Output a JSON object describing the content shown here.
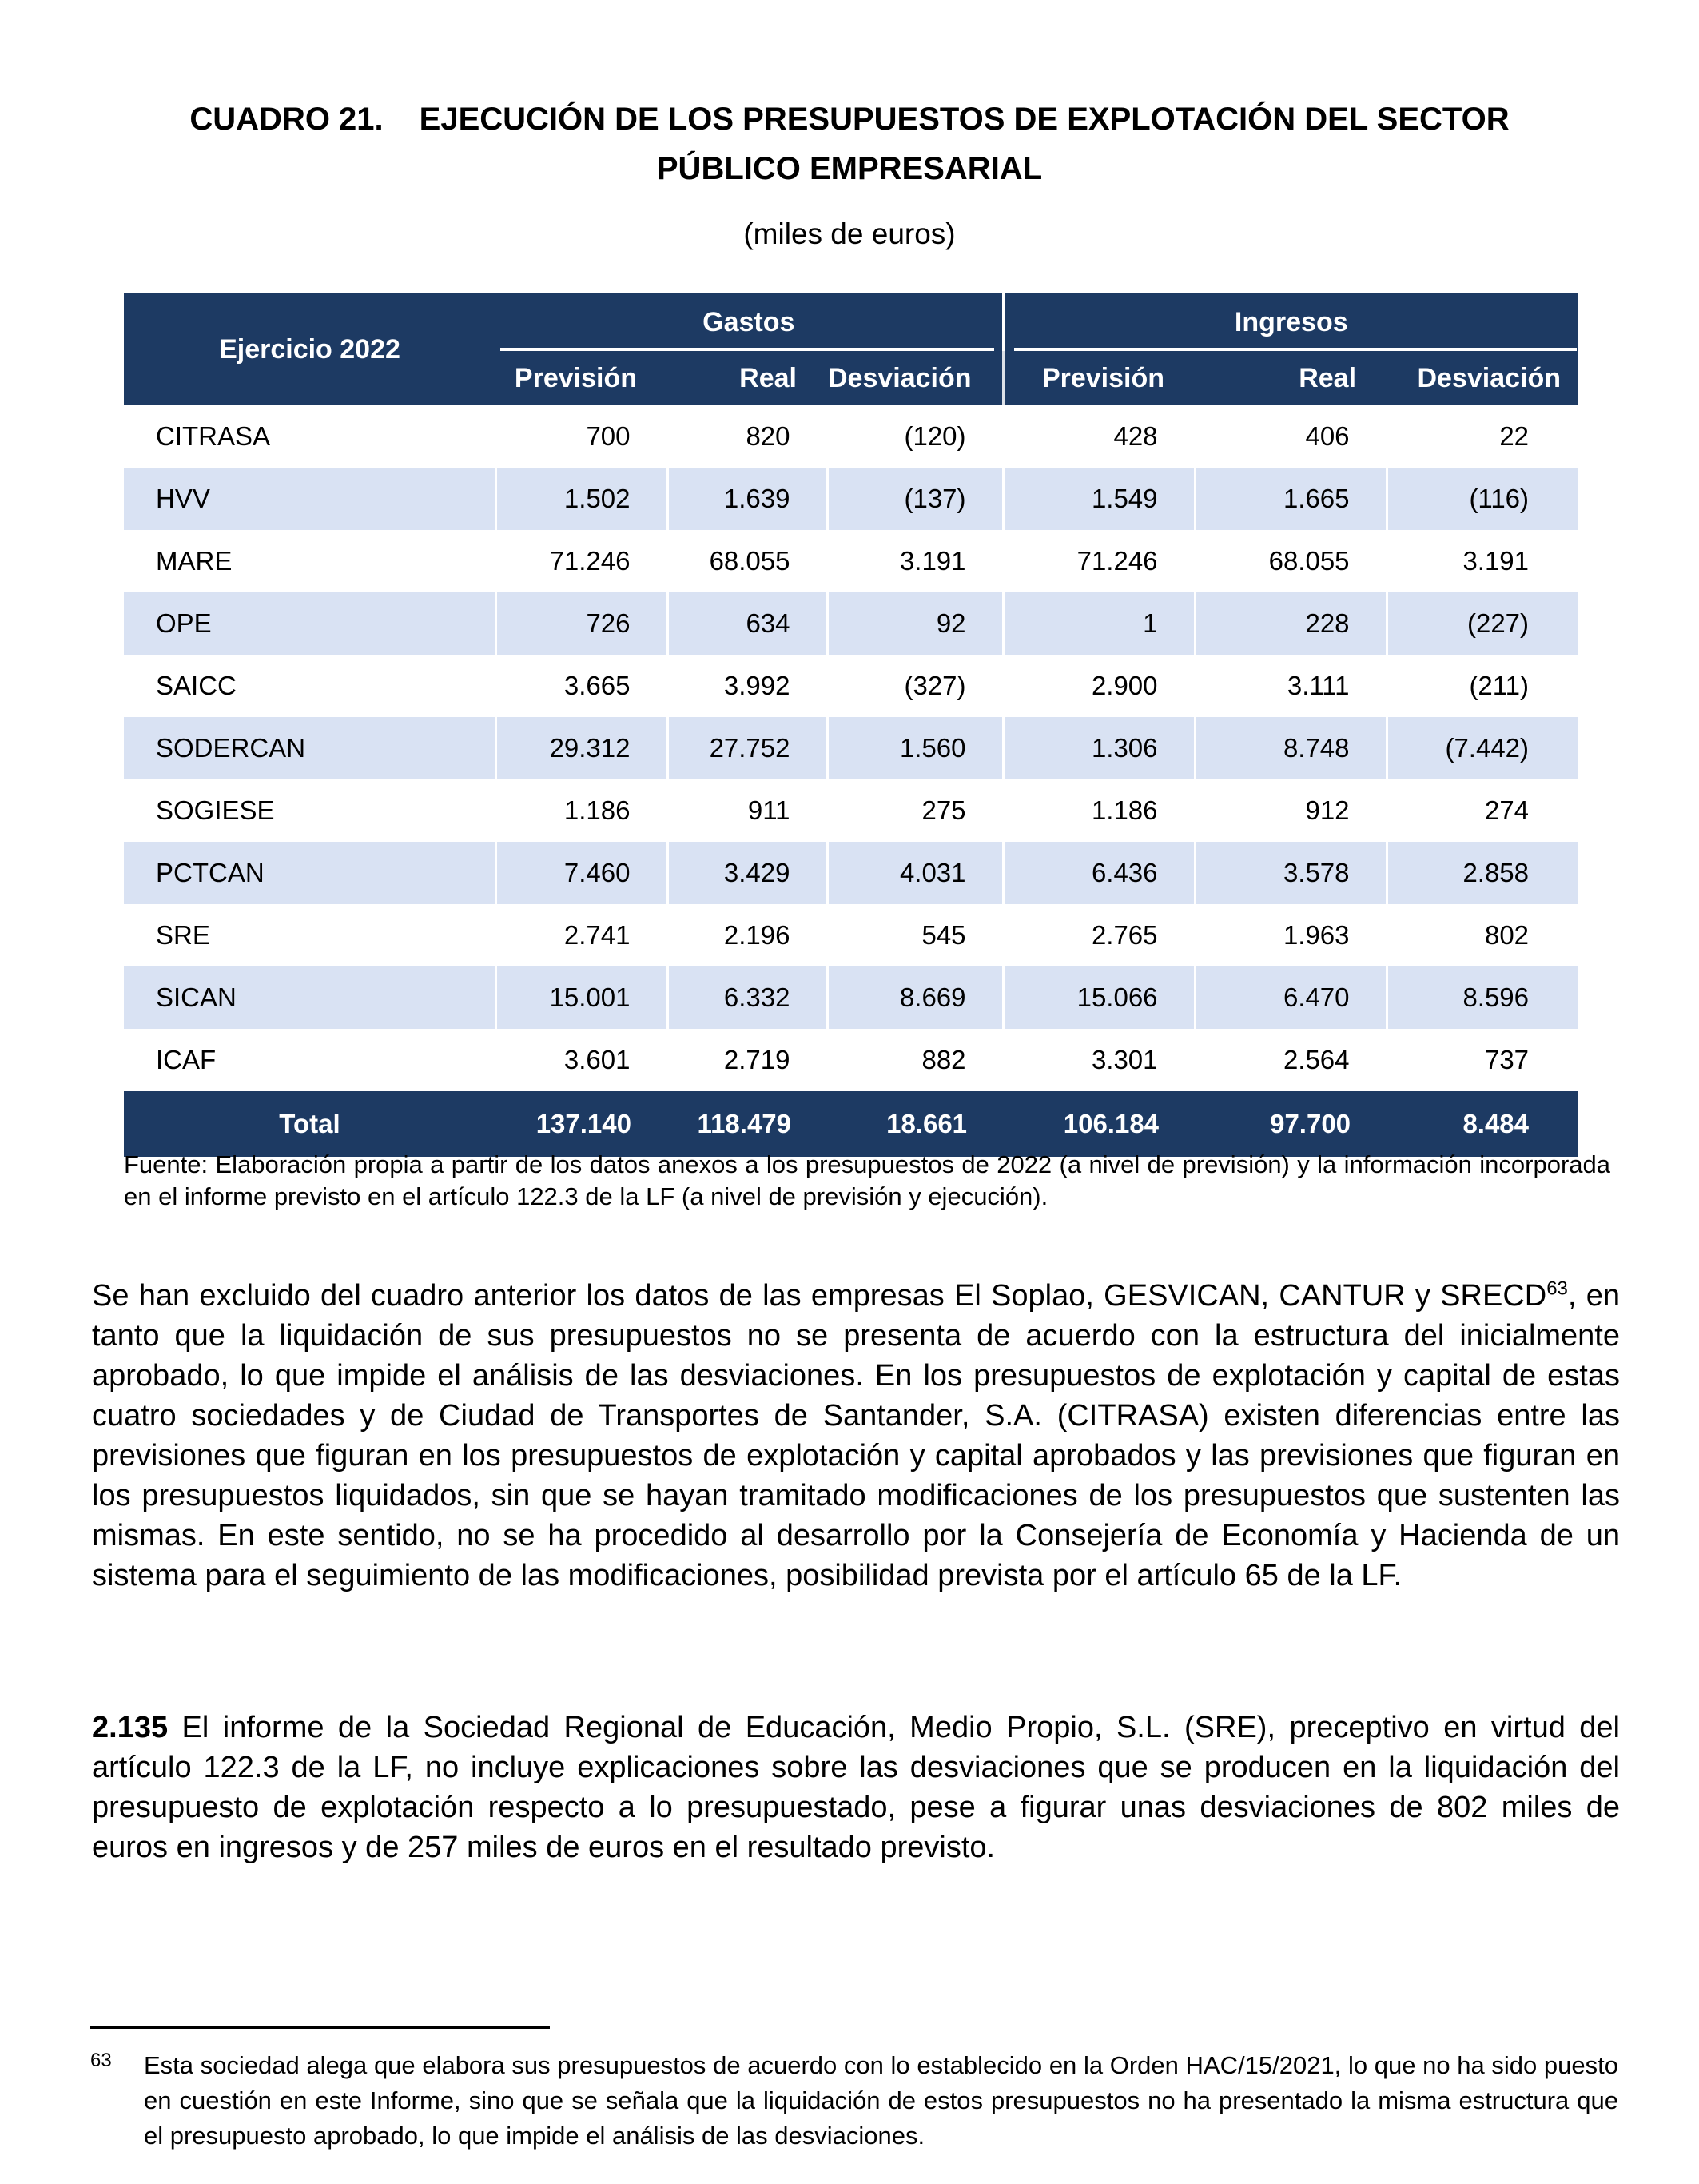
{
  "heading": {
    "cuadro": "CUADRO 21.",
    "title": "EJECUCIÓN DE LOS PRESUPUESTOS DE EXPLOTACIÓN DEL SECTOR",
    "title_line2": "PÚBLICO EMPRESARIAL",
    "units": "(miles de euros)"
  },
  "table": {
    "corner_header": "Ejercicio 2022",
    "groups": [
      "Gastos",
      "Ingresos"
    ],
    "sub_headers": [
      "Previsión",
      "Real",
      "Desviación",
      "Previsión",
      "Real",
      "Desviación"
    ],
    "rows": [
      {
        "name": "CITRASA",
        "values": [
          "700",
          "820",
          "(120)",
          "428",
          "406",
          "22"
        ]
      },
      {
        "name": "HVV",
        "values": [
          "1.502",
          "1.639",
          "(137)",
          "1.549",
          "1.665",
          "(116)"
        ]
      },
      {
        "name": "MARE",
        "values": [
          "71.246",
          "68.055",
          "3.191",
          "71.246",
          "68.055",
          "3.191"
        ]
      },
      {
        "name": "OPE",
        "values": [
          "726",
          "634",
          "92",
          "1",
          "228",
          "(227)"
        ]
      },
      {
        "name": "SAICC",
        "values": [
          "3.665",
          "3.992",
          "(327)",
          "2.900",
          "3.111",
          "(211)"
        ]
      },
      {
        "name": "SODERCAN",
        "values": [
          "29.312",
          "27.752",
          "1.560",
          "1.306",
          "8.748",
          "(7.442)"
        ]
      },
      {
        "name": "SOGIESE",
        "values": [
          "1.186",
          "911",
          "275",
          "1.186",
          "912",
          "274"
        ]
      },
      {
        "name": "PCTCAN",
        "values": [
          "7.460",
          "3.429",
          "4.031",
          "6.436",
          "3.578",
          "2.858"
        ]
      },
      {
        "name": "SRE",
        "values": [
          "2.741",
          "2.196",
          "545",
          "2.765",
          "1.963",
          "802"
        ]
      },
      {
        "name": "SICAN",
        "values": [
          "15.001",
          "6.332",
          "8.669",
          "15.066",
          "6.470",
          "8.596"
        ]
      },
      {
        "name": "ICAF",
        "values": [
          "3.601",
          "2.719",
          "882",
          "3.301",
          "2.564",
          "737"
        ]
      }
    ],
    "total": {
      "label": "Total",
      "values": [
        "137.140",
        "118.479",
        "18.661",
        "106.184",
        "97.700",
        "8.484"
      ]
    }
  },
  "source_note": "Fuente: Elaboración propia a partir de los datos anexos a los presupuestos de 2022 (a nivel de previsión) y la información incorporada en el informe previsto en el artículo 122.3 de la LF (a nivel de previsión y ejecución).",
  "body": {
    "p1_before_sup": "Se han excluido del cuadro anterior los datos de las empresas El Soplao, GESVICAN, CANTUR y SRECD",
    "p1_sup": "63",
    "p1_after_sup": ", en tanto que la liquidación de sus presupuestos no se presenta de acuerdo con la estructura del inicialmente aprobado, lo que impide el análisis de las desviaciones. En los presupuestos de explotación y capital de estas cuatro sociedades y de Ciudad de Transportes de Santander, S.A. (CITRASA) existen diferencias entre las previsiones que figuran en los presupuestos de explotación y capital aprobados y las previsiones que figuran en los presupuestos liquidados, sin que se hayan tramitado modificaciones de los presupuestos que sustenten las mismas. En este sentido, no se ha procedido al desarrollo por la Consejería de Economía y Hacienda de un sistema para el seguimiento de las modificaciones, posibilidad prevista por el artículo 65 de la LF.",
    "p2_number": "2.135",
    "p2_text": " El informe de la Sociedad Regional de Educación, Medio Propio, S.L. (SRE), preceptivo en virtud del artículo 122.3 de la LF, no incluye explicaciones sobre las desviaciones que se producen en la liquidación del presupuesto de explotación respecto a lo presupuestado, pese a figurar unas desviaciones de 802 miles de euros en ingresos y de 257 miles de euros en el resultado previsto."
  },
  "footnote": {
    "marker": "63",
    "text": "Esta sociedad alega que elabora sus presupuestos de acuerdo con lo establecido en la Orden HAC/15/2021, lo que no ha sido puesto en cuestión en este Informe, sino que se señala que la liquidación de estos presupuestos no ha presentado la misma estructura que el presupuesto aprobado, lo que impide el análisis de las desviaciones."
  },
  "colors": {
    "header_bg": "#1d3a63",
    "row_alt_bg": "#d9e2f3"
  }
}
